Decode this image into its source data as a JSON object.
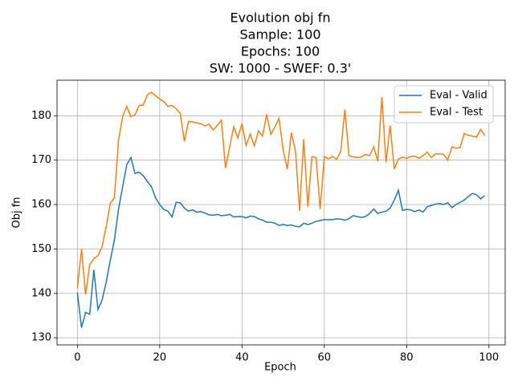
{
  "chart_data": {
    "type": "line",
    "title": [
      "Evolution obj fn",
      "Sample: 100",
      "Epochs: 100",
      "SW: 1000 - SWEF: 0.3'"
    ],
    "x_label": "Epoch",
    "y_label": "Obj fn",
    "x": [
      0,
      1,
      2,
      3,
      4,
      5,
      6,
      7,
      8,
      9,
      10,
      11,
      12,
      13,
      14,
      15,
      16,
      17,
      18,
      19,
      20,
      21,
      22,
      23,
      24,
      25,
      26,
      27,
      28,
      29,
      30,
      31,
      32,
      33,
      34,
      35,
      36,
      37,
      38,
      39,
      40,
      41,
      42,
      43,
      44,
      45,
      46,
      47,
      48,
      49,
      50,
      51,
      52,
      53,
      54,
      55,
      56,
      57,
      58,
      59,
      60,
      61,
      62,
      63,
      64,
      65,
      66,
      67,
      68,
      69,
      70,
      71,
      72,
      73,
      74,
      75,
      76,
      77,
      78,
      79,
      80,
      81,
      82,
      83,
      84,
      85,
      86,
      87,
      88,
      89,
      90,
      91,
      92,
      93,
      94,
      95,
      96,
      97,
      98,
      99
    ],
    "series": [
      {
        "name": "Eval - Valid",
        "color": "#1f77b4",
        "values": [
          140.2,
          132.3,
          135.7,
          135.3,
          145.3,
          136.4,
          138.5,
          142.5,
          147.5,
          152,
          159,
          164,
          169,
          170.6,
          167,
          167.3,
          166.5,
          165.2,
          164,
          161.5,
          160,
          158.9,
          158.5,
          157.2,
          160.5,
          160.4,
          159.2,
          158.5,
          158.8,
          158.3,
          158.4,
          158.1,
          157.7,
          157.6,
          157.8,
          157.5,
          157.6,
          157.8,
          157.2,
          157.3,
          157.3,
          157,
          157.4,
          157.3,
          156.8,
          156.5,
          156,
          156,
          155.8,
          155.3,
          155.5,
          155.3,
          155.4,
          155.1,
          155,
          155.8,
          155.5,
          155.8,
          156.2,
          156.4,
          156.6,
          156.6,
          156.6,
          156.8,
          156.7,
          156.5,
          156.8,
          157.5,
          157.3,
          157.1,
          157.3,
          158,
          159,
          158,
          158.3,
          158.5,
          159.2,
          161,
          163.2,
          158.7,
          158.9,
          158.8,
          158.4,
          158.8,
          158.3,
          159.5,
          159.8,
          160.1,
          160.2,
          160,
          160.4,
          159.3,
          160,
          160.5,
          161,
          161.8,
          162.5,
          162.2,
          161.3,
          162
        ]
      },
      {
        "name": "Eval - Test",
        "color": "#ff7f0e",
        "values": [
          141.2,
          150,
          139.8,
          146.5,
          147.8,
          148.5,
          150.5,
          155,
          160.3,
          161.5,
          174.5,
          179.8,
          182.1,
          179.8,
          180.2,
          182.3,
          182.4,
          184.7,
          185.3,
          184.5,
          183.8,
          183.2,
          182.1,
          182.3,
          181.6,
          180.5,
          174.2,
          178.7,
          178.6,
          178.4,
          178.2,
          177.7,
          178.1,
          176.8,
          177.8,
          179,
          168.2,
          173,
          177.5,
          175,
          178.2,
          173.3,
          175.9,
          173.2,
          176.6,
          175.4,
          180.3,
          175.8,
          177.5,
          179.4,
          172.3,
          168,
          176.2,
          172,
          158.6,
          174.7,
          159.5,
          170.8,
          170.6,
          159,
          170.8,
          170.3,
          170.8,
          170.2,
          172,
          181.4,
          171,
          170.7,
          170.6,
          170.7,
          171.3,
          171,
          173,
          169.8,
          184.2,
          169.5,
          177.8,
          168,
          170.2,
          170.7,
          170.4,
          170.8,
          170.9,
          170.4,
          171,
          171.8,
          170.6,
          171.4,
          171.4,
          171.3,
          170,
          173,
          172.7,
          172.8,
          176,
          175.6,
          175.4,
          175.2,
          176.9,
          175.6
        ]
      }
    ],
    "xlim": [
      -4.95,
      103.95
    ],
    "ylim": [
      128.4,
      188
    ],
    "xticks": [
      0,
      20,
      40,
      60,
      80,
      100
    ],
    "yticks": [
      130,
      140,
      150,
      160,
      170,
      180
    ],
    "grid": true,
    "legend": "upper right"
  }
}
